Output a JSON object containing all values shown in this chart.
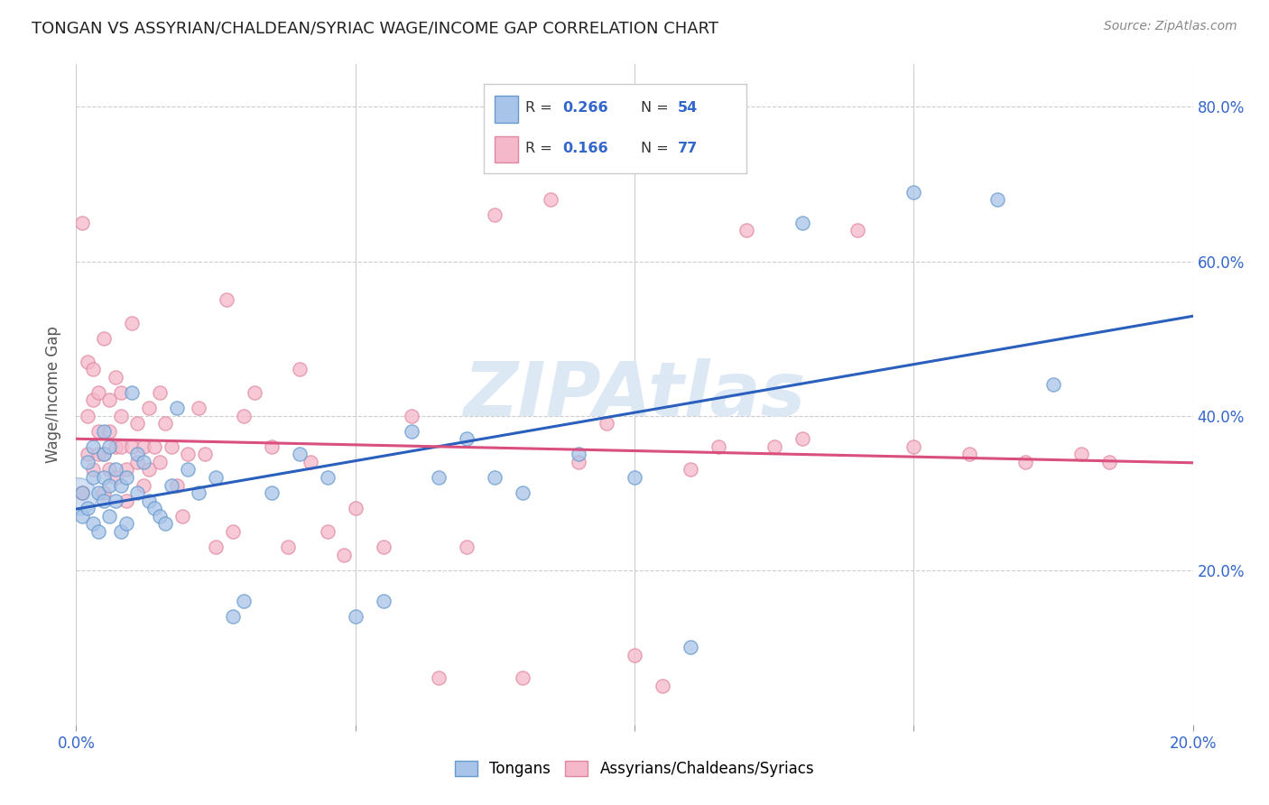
{
  "title": "TONGAN VS ASSYRIAN/CHALDEAN/SYRIAC WAGE/INCOME GAP CORRELATION CHART",
  "source": "Source: ZipAtlas.com",
  "ylabel": "Wage/Income Gap",
  "legend_blue_r": "0.266",
  "legend_blue_n": "54",
  "legend_pink_r": "0.166",
  "legend_pink_n": "77",
  "blue_color": "#a8c4e8",
  "pink_color": "#f5b8ca",
  "blue_line_color": "#2b5fbd",
  "pink_line_color": "#d94f7e",
  "blue_edge_color": "#6699cc",
  "pink_edge_color": "#e088a0",
  "watermark": "ZIPAtlas",
  "blue_scatter_x": [
    0.001,
    0.001,
    0.002,
    0.002,
    0.003,
    0.003,
    0.003,
    0.004,
    0.004,
    0.005,
    0.005,
    0.005,
    0.005,
    0.006,
    0.006,
    0.006,
    0.007,
    0.007,
    0.008,
    0.008,
    0.009,
    0.009,
    0.01,
    0.011,
    0.011,
    0.012,
    0.013,
    0.014,
    0.015,
    0.016,
    0.017,
    0.018,
    0.02,
    0.022,
    0.025,
    0.028,
    0.03,
    0.035,
    0.04,
    0.045,
    0.05,
    0.055,
    0.06,
    0.065,
    0.07,
    0.075,
    0.08,
    0.09,
    0.1,
    0.11,
    0.13,
    0.15,
    0.165,
    0.175
  ],
  "blue_scatter_y": [
    0.3,
    0.27,
    0.28,
    0.34,
    0.26,
    0.32,
    0.36,
    0.3,
    0.25,
    0.29,
    0.32,
    0.35,
    0.38,
    0.27,
    0.31,
    0.36,
    0.29,
    0.33,
    0.25,
    0.31,
    0.26,
    0.32,
    0.43,
    0.3,
    0.35,
    0.34,
    0.29,
    0.28,
    0.27,
    0.26,
    0.31,
    0.41,
    0.33,
    0.3,
    0.32,
    0.14,
    0.16,
    0.3,
    0.35,
    0.32,
    0.14,
    0.16,
    0.38,
    0.32,
    0.37,
    0.32,
    0.3,
    0.35,
    0.32,
    0.1,
    0.65,
    0.69,
    0.68,
    0.44
  ],
  "pink_scatter_x": [
    0.001,
    0.001,
    0.002,
    0.002,
    0.002,
    0.003,
    0.003,
    0.003,
    0.004,
    0.004,
    0.004,
    0.005,
    0.005,
    0.005,
    0.006,
    0.006,
    0.006,
    0.007,
    0.007,
    0.007,
    0.008,
    0.008,
    0.008,
    0.009,
    0.009,
    0.01,
    0.01,
    0.011,
    0.011,
    0.012,
    0.012,
    0.013,
    0.013,
    0.014,
    0.015,
    0.015,
    0.016,
    0.017,
    0.018,
    0.019,
    0.02,
    0.022,
    0.023,
    0.025,
    0.027,
    0.028,
    0.03,
    0.032,
    0.035,
    0.038,
    0.04,
    0.042,
    0.045,
    0.048,
    0.05,
    0.055,
    0.06,
    0.065,
    0.07,
    0.075,
    0.08,
    0.085,
    0.09,
    0.095,
    0.1,
    0.105,
    0.11,
    0.115,
    0.12,
    0.125,
    0.13,
    0.14,
    0.15,
    0.16,
    0.17,
    0.18,
    0.185
  ],
  "pink_scatter_y": [
    0.65,
    0.3,
    0.35,
    0.4,
    0.47,
    0.33,
    0.42,
    0.46,
    0.35,
    0.38,
    0.43,
    0.3,
    0.35,
    0.5,
    0.33,
    0.38,
    0.42,
    0.32,
    0.36,
    0.45,
    0.36,
    0.4,
    0.43,
    0.29,
    0.33,
    0.36,
    0.52,
    0.34,
    0.39,
    0.31,
    0.36,
    0.33,
    0.41,
    0.36,
    0.34,
    0.43,
    0.39,
    0.36,
    0.31,
    0.27,
    0.35,
    0.41,
    0.35,
    0.23,
    0.55,
    0.25,
    0.4,
    0.43,
    0.36,
    0.23,
    0.46,
    0.34,
    0.25,
    0.22,
    0.28,
    0.23,
    0.4,
    0.06,
    0.23,
    0.66,
    0.06,
    0.68,
    0.34,
    0.39,
    0.09,
    0.05,
    0.33,
    0.36,
    0.64,
    0.36,
    0.37,
    0.64,
    0.36,
    0.35,
    0.34,
    0.35,
    0.34
  ]
}
